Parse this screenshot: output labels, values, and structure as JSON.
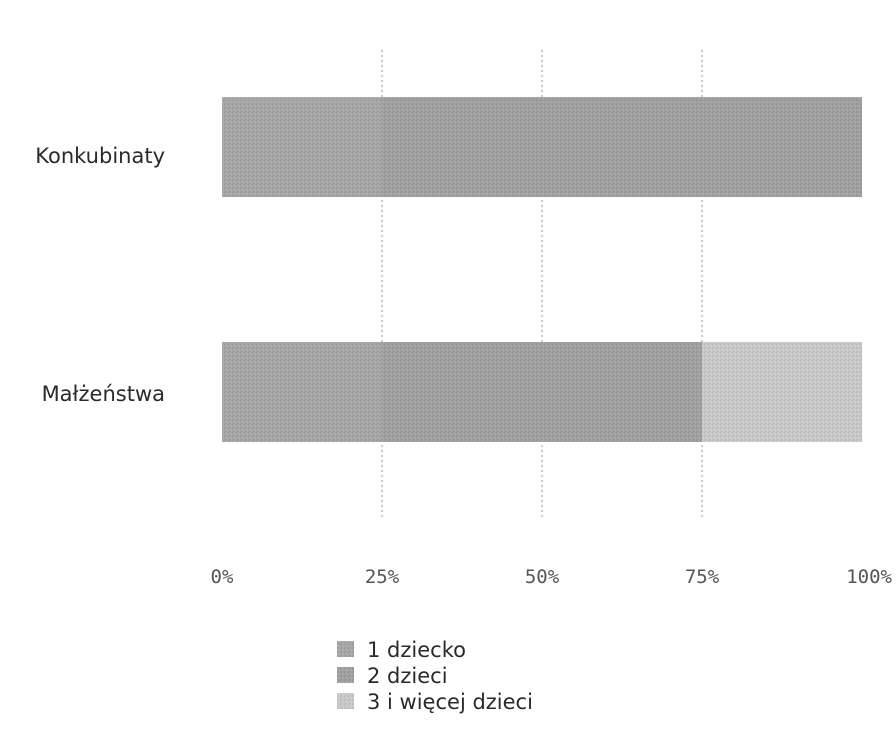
{
  "chart_data": {
    "type": "bar",
    "orientation": "horizontal",
    "stacked": "percent",
    "categories": [
      "Konkubinaty",
      "Małżeństwa"
    ],
    "series": [
      {
        "name": "1 dziecko",
        "values": [
          25,
          25
        ],
        "color": "#a6a6a6"
      },
      {
        "name": "2 dzieci",
        "values": [
          75,
          50
        ],
        "color": "#a0a0a0"
      },
      {
        "name": "3 i więcej dzieci",
        "values": [
          0,
          25
        ],
        "color": "#c8c8c8"
      }
    ],
    "xlim": [
      0,
      100
    ],
    "x_ticks": [
      "0%",
      "25%",
      "50%",
      "75%",
      "100%"
    ],
    "grid": true,
    "legend_position": "bottom",
    "title": "",
    "xlabel": "",
    "ylabel": ""
  }
}
